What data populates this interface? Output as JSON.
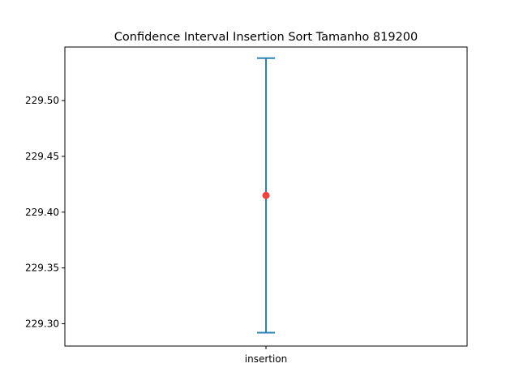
{
  "chart_data": {
    "type": "errorbar",
    "title": "Confidence Interval Insertion Sort Tamanho 819200",
    "xlabel": "",
    "ylabel": "",
    "categories": [
      "insertion"
    ],
    "series": [
      {
        "mean": 229.415,
        "lower": 229.292,
        "upper": 229.538
      }
    ],
    "ylim": [
      229.28,
      229.548
    ],
    "yticks": [
      229.3,
      229.35,
      229.4,
      229.45,
      229.5
    ],
    "yticks_labels": [
      "229.30",
      "229.35",
      "229.40",
      "229.45",
      "229.50"
    ],
    "grid": false,
    "colors": {
      "interval": "#2b84b4",
      "mean": "#f0443a",
      "axes": "#000000"
    }
  }
}
